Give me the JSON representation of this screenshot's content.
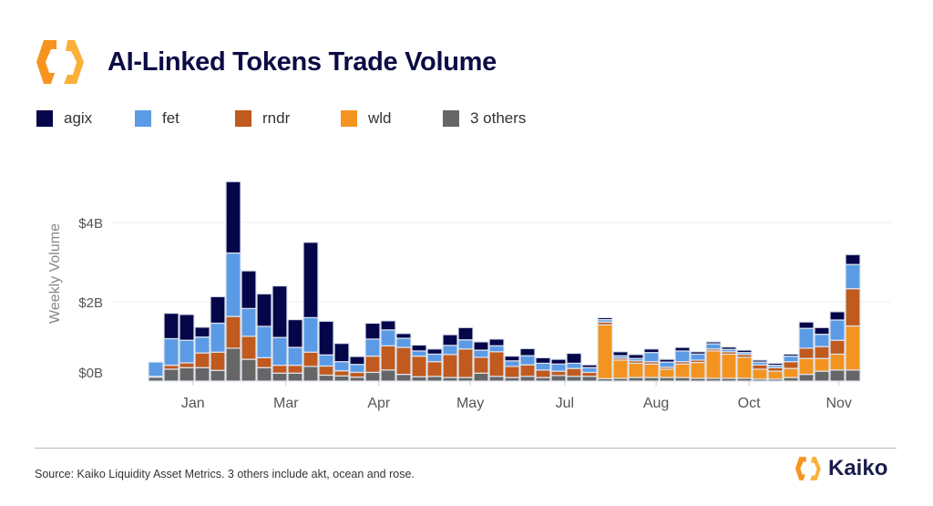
{
  "header": {
    "title": "AI-Linked Tokens Trade Volume",
    "logo_color": "#f7931e"
  },
  "footer": {
    "source": "Source: Kaiko Liquidity Asset Metrics. 3 others include akt, ocean and rose.",
    "brand": "Kaiko"
  },
  "chart_data": {
    "type": "bar",
    "stacked": true,
    "title": "AI-Linked Tokens Trade Volume",
    "ylabel": "Weekly Volume",
    "xlabel": "",
    "ylim": [
      0,
      5.2
    ],
    "y_ticks": [
      {
        "value": 0,
        "label": "$0B"
      },
      {
        "value": 2,
        "label": "$2B"
      },
      {
        "value": 4,
        "label": "$4B"
      }
    ],
    "x_ticks": [
      {
        "label": "Jan",
        "week": 2.4
      },
      {
        "label": "Mar",
        "week": 8.4
      },
      {
        "label": "Apr",
        "week": 14.4
      },
      {
        "label": "May",
        "week": 20.3
      },
      {
        "label": "Jul",
        "week": 26.4
      },
      {
        "label": "Aug",
        "week": 32.3
      },
      {
        "label": "Oct",
        "week": 38.3
      },
      {
        "label": "Nov",
        "week": 44.1
      }
    ],
    "grid": true,
    "legend_position": "top-left",
    "unit": "USD billions",
    "series": [
      {
        "name": "3 others",
        "color": "#666666",
        "values": [
          0.1,
          0.3,
          0.34,
          0.34,
          0.27,
          0.83,
          0.55,
          0.34,
          0.2,
          0.2,
          0.37,
          0.15,
          0.13,
          0.1,
          0.22,
          0.28,
          0.17,
          0.11,
          0.12,
          0.09,
          0.09,
          0.2,
          0.12,
          0.09,
          0.12,
          0.09,
          0.14,
          0.12,
          0.12,
          0.06,
          0.07,
          0.09,
          0.09,
          0.09,
          0.09,
          0.07,
          0.07,
          0.07,
          0.07,
          0.05,
          0.05,
          0.09,
          0.17,
          0.25,
          0.28,
          0.28
        ]
      },
      {
        "name": "wld",
        "color": "#f39420",
        "values": [
          0,
          0,
          0,
          0,
          0,
          0,
          0,
          0,
          0,
          0,
          0,
          0,
          0,
          0,
          0,
          0,
          0,
          0,
          0,
          0,
          0,
          0,
          0,
          0,
          0,
          0,
          0,
          0,
          0,
          1.36,
          0.46,
          0.36,
          0.34,
          0.21,
          0.34,
          0.4,
          0.69,
          0.61,
          0.53,
          0.25,
          0.2,
          0.23,
          0.4,
          0.32,
          0.4,
          1.11
        ]
      },
      {
        "name": "rndr",
        "color": "#c05a1e",
        "values": [
          0.02,
          0.1,
          0.12,
          0.37,
          0.46,
          0.8,
          0.58,
          0.25,
          0.2,
          0.2,
          0.36,
          0.23,
          0.13,
          0.12,
          0.41,
          0.61,
          0.68,
          0.52,
          0.37,
          0.58,
          0.72,
          0.4,
          0.62,
          0.28,
          0.29,
          0.19,
          0.11,
          0.2,
          0.1,
          0.07,
          0.05,
          0.06,
          0.06,
          0.05,
          0.06,
          0.06,
          0.05,
          0.06,
          0.07,
          0.11,
          0.09,
          0.17,
          0.26,
          0.3,
          0.35,
          0.94
        ]
      },
      {
        "name": "fet",
        "color": "#5b9be6",
        "values": [
          0.36,
          0.67,
          0.57,
          0.4,
          0.73,
          1.6,
          0.7,
          0.79,
          0.7,
          0.45,
          0.87,
          0.28,
          0.23,
          0.2,
          0.43,
          0.4,
          0.23,
          0.13,
          0.19,
          0.23,
          0.23,
          0.18,
          0.15,
          0.14,
          0.23,
          0.17,
          0.18,
          0.13,
          0.12,
          0.06,
          0.06,
          0.06,
          0.23,
          0.13,
          0.27,
          0.15,
          0.13,
          0.06,
          0.05,
          0.07,
          0.06,
          0.14,
          0.5,
          0.31,
          0.51,
          0.61
        ]
      },
      {
        "name": "agix",
        "color": "#05054a",
        "values": [
          0,
          0.64,
          0.65,
          0.25,
          0.67,
          1.8,
          0.95,
          0.82,
          1.3,
          0.7,
          1.9,
          0.85,
          0.46,
          0.2,
          0.4,
          0.23,
          0.12,
          0.15,
          0.13,
          0.27,
          0.31,
          0.21,
          0.17,
          0.12,
          0.18,
          0.14,
          0.12,
          0.25,
          0.07,
          0.05,
          0.1,
          0.1,
          0.09,
          0.07,
          0.09,
          0.06,
          0.05,
          0.06,
          0.06,
          0.05,
          0.05,
          0.05,
          0.16,
          0.17,
          0.21,
          0.25
        ]
      }
    ],
    "legend_order": [
      "agix",
      "fet",
      "rndr",
      "wld",
      "3 others"
    ]
  }
}
